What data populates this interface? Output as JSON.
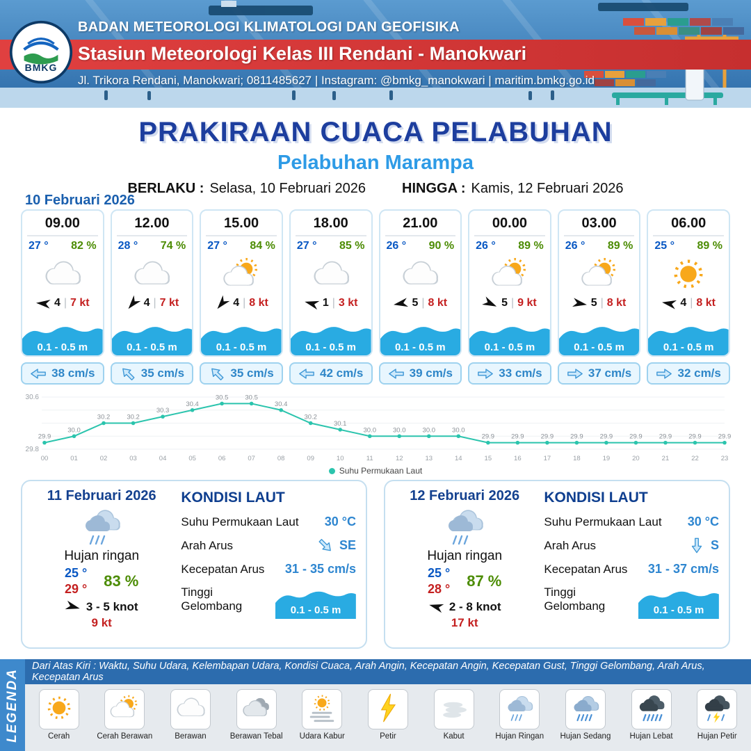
{
  "header": {
    "org": "BADAN METEOROLOGI KLIMATOLOGI DAN GEOFISIKA",
    "station": "Stasiun Meteorologi Kelas III Rendani - Manokwari",
    "contact": "Jl. Trikora Rendani, Manokwari; 0811485627 | Instagram: @bmkg_manokwari | maritim.bmkg.go.id",
    "logo_text": "BMKG"
  },
  "title": {
    "main": "PRAKIRAAN CUACA PELABUHAN",
    "subtitle": "Pelabuhan Marampa",
    "valid_from_label": "BERLAKU :",
    "valid_from": "Selasa, 10 Februari 2026",
    "valid_to_label": "HINGGA :",
    "valid_to": "Kamis, 12 Februari 2026"
  },
  "hourly": {
    "date": "10 Februari 2026",
    "cards": [
      {
        "time": "09.00",
        "temp": "27 °",
        "humidity": "82 %",
        "icon": "berawan",
        "wind_deg": 185,
        "wind_speed": "4",
        "gust": "7 kt",
        "wave": "0.1 - 0.5 m",
        "current_deg": 180,
        "current": "38 cm/s"
      },
      {
        "time": "12.00",
        "temp": "28 °",
        "humidity": "74 %",
        "icon": "berawan",
        "wind_deg": 130,
        "wind_speed": "4",
        "gust": "7 kt",
        "wave": "0.1 - 0.5 m",
        "current_deg": 225,
        "current": "35 cm/s"
      },
      {
        "time": "15.00",
        "temp": "27 °",
        "humidity": "84 %",
        "icon": "cerah-berawan",
        "wind_deg": 130,
        "wind_speed": "4",
        "gust": "8 kt",
        "wave": "0.1 - 0.5 m",
        "current_deg": 225,
        "current": "35 cm/s"
      },
      {
        "time": "18.00",
        "temp": "27 °",
        "humidity": "85 %",
        "icon": "berawan",
        "wind_deg": 195,
        "wind_speed": "1",
        "gust": "3 kt",
        "wave": "0.1 - 0.5 m",
        "current_deg": 180,
        "current": "42 cm/s"
      },
      {
        "time": "21.00",
        "temp": "26 °",
        "humidity": "90 %",
        "icon": "berawan",
        "wind_deg": 170,
        "wind_speed": "5",
        "gust": "8 kt",
        "wave": "0.1 - 0.5 m",
        "current_deg": 180,
        "current": "39 cm/s"
      },
      {
        "time": "00.00",
        "temp": "26 °",
        "humidity": "89 %",
        "icon": "cerah-berawan",
        "wind_deg": 25,
        "wind_speed": "5",
        "gust": "9 kt",
        "wave": "0.1 - 0.5 m",
        "current_deg": 0,
        "current": "33 cm/s"
      },
      {
        "time": "03.00",
        "temp": "26 °",
        "humidity": "89 %",
        "icon": "cerah-berawan",
        "wind_deg": 10,
        "wind_speed": "5",
        "gust": "8 kt",
        "wave": "0.1 - 0.5 m",
        "current_deg": 0,
        "current": "37 cm/s"
      },
      {
        "time": "06.00",
        "temp": "25 °",
        "humidity": "89 %",
        "icon": "cerah",
        "wind_deg": 190,
        "wind_speed": "4",
        "gust": "8 kt",
        "wave": "0.1 - 0.5 m",
        "current_deg": 0,
        "current": "32 cm/s"
      }
    ]
  },
  "chart_data": {
    "type": "line",
    "x": [
      "00",
      "01",
      "02",
      "03",
      "04",
      "05",
      "06",
      "07",
      "08",
      "09",
      "10",
      "11",
      "12",
      "13",
      "14",
      "15",
      "16",
      "17",
      "18",
      "19",
      "20",
      "21",
      "22",
      "23"
    ],
    "values": [
      29.9,
      30.0,
      30.2,
      30.2,
      30.3,
      30.4,
      30.5,
      30.5,
      30.4,
      30.2,
      30.1,
      30.0,
      30.0,
      30.0,
      30.0,
      29.9,
      29.9,
      29.9,
      29.9,
      29.9,
      29.9,
      29.9,
      29.9,
      29.9
    ],
    "ylim": [
      29.8,
      30.6
    ],
    "line_color": "#2bc4ad",
    "legend": "Suhu Permukaan Laut",
    "grid": true,
    "legend_position": "bottom"
  },
  "daily": [
    {
      "date": "11 Februari 2026",
      "icon": "hujan-ringan",
      "condition": "Hujan ringan",
      "temp_min": "25 °",
      "temp_max": "29 °",
      "humidity": "83 %",
      "wind_deg": 15,
      "wind": "3 - 5 knot",
      "gust": "9 kt",
      "sea": {
        "title": "KONDISI LAUT",
        "sst_label": "Suhu Permukaan Laut",
        "sst": "30 °C",
        "current_dir_label": "Arah Arus",
        "current_dir_deg": 45,
        "current_dir": "SE",
        "current_label": "Kecepatan Arus",
        "current": "31 - 35 cm/s",
        "wave_label": "Tinggi Gelombang",
        "wave": "0.1 - 0.5 m"
      }
    },
    {
      "date": "12 Februari 2026",
      "icon": "hujan-ringan",
      "condition": "Hujan ringan",
      "temp_min": "25 °",
      "temp_max": "28 °",
      "humidity": "87 %",
      "wind_deg": 195,
      "wind": "2 - 8 knot",
      "gust": "17 kt",
      "sea": {
        "title": "KONDISI LAUT",
        "sst_label": "Suhu Permukaan Laut",
        "sst": "30 °C",
        "current_dir_label": "Arah Arus",
        "current_dir_deg": 90,
        "current_dir": "S",
        "current_label": "Kecepatan Arus",
        "current": "31 - 37 cm/s",
        "wave_label": "Tinggi Gelombang",
        "wave": "0.1 - 0.5 m"
      }
    }
  ],
  "legend": {
    "vertical_label": "LEGENDA",
    "note": "Dari Atas Kiri : Waktu, Suhu Udara, Kelembapan Udara, Kondisi Cuaca, Arah Angin, Kecepatan Angin, Kecepatan Gust, Tinggi Gelombang, Arah Arus, Kecepatan Arus",
    "items": [
      {
        "label": "Cerah",
        "icon": "cerah"
      },
      {
        "label": "Cerah Berawan",
        "icon": "cerah-berawan"
      },
      {
        "label": "Berawan",
        "icon": "berawan"
      },
      {
        "label": "Berawan Tebal",
        "icon": "berawan-tebal"
      },
      {
        "label": "Udara Kabur",
        "icon": "udara-kabur"
      },
      {
        "label": "Petir",
        "icon": "petir"
      },
      {
        "label": "Kabut",
        "icon": "kabut"
      },
      {
        "label": "Hujan Ringan",
        "icon": "hujan-ringan"
      },
      {
        "label": "Hujan Sedang",
        "icon": "hujan-sedang"
      },
      {
        "label": "Hujan Lebat",
        "icon": "hujan-lebat"
      },
      {
        "label": "Hujan Petir",
        "icon": "hujan-petir"
      }
    ]
  }
}
